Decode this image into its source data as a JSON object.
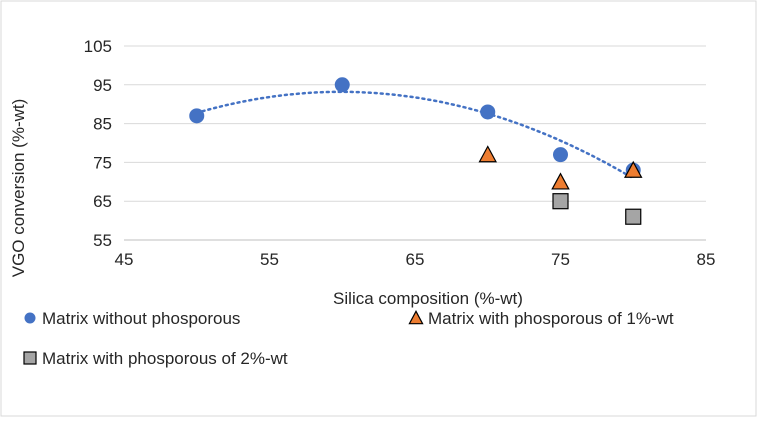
{
  "chart_data": {
    "type": "scatter",
    "title": "",
    "xlabel": "Silica composition (%-wt)",
    "ylabel": "VGO conversion (%-wt)",
    "xlim": [
      45,
      85
    ],
    "ylim": [
      55,
      105
    ],
    "x_ticks": [
      45,
      55,
      65,
      75,
      85
    ],
    "y_ticks": [
      55,
      65,
      75,
      85,
      95,
      105
    ],
    "grid": "horizontal",
    "legend_position": "bottom",
    "series": [
      {
        "name": "Matrix without phosporous",
        "marker": "circle",
        "color": "#4472C4",
        "points": [
          [
            50,
            87
          ],
          [
            60,
            95
          ],
          [
            70,
            88
          ],
          [
            75,
            77
          ],
          [
            80,
            73
          ]
        ]
      },
      {
        "name": "Matrix with phosporous of 1%-wt",
        "marker": "triangle",
        "color": "#ED7D31",
        "points": [
          [
            70,
            77
          ],
          [
            75,
            70
          ],
          [
            80,
            73
          ]
        ]
      },
      {
        "name": "Matrix with phosporous of 2%-wt",
        "marker": "square",
        "color": "#A5A5A5",
        "points": [
          [
            75,
            65
          ],
          [
            80,
            61
          ]
        ]
      }
    ],
    "trendline": {
      "series": "Matrix without phosporous",
      "type": "polynomial",
      "style": "dotted",
      "color": "#4472C4"
    }
  }
}
